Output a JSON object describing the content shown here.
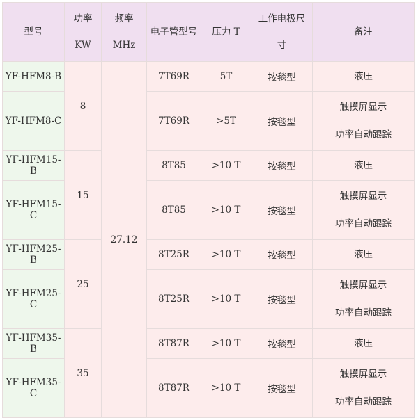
{
  "headers": [
    "型号",
    "功率\nKW",
    "频率\nMHz",
    "电子管型号",
    "压力 T",
    "工作电极尺寸",
    "备注"
  ],
  "header_lines": {
    "power": [
      "功率",
      "KW"
    ],
    "freq": [
      "频率",
      "MHz"
    ],
    "electrode": [
      "工作电极尺",
      "寸"
    ]
  },
  "frequency": "27.12",
  "groups": [
    {
      "power": "8",
      "rows": [
        {
          "model": "YF-HFM8-B",
          "tube": "7T69R",
          "pressure": "5T",
          "electrode": "按毯型",
          "note": [
            "液压"
          ]
        },
        {
          "model": "YF-HFM8-C",
          "tube": "7T69R",
          "pressure": ">5T",
          "electrode": "按毯型",
          "note": [
            "触摸屏显示",
            "功率自动跟踪"
          ]
        }
      ]
    },
    {
      "power": "15",
      "rows": [
        {
          "model": "YF-HFM15-B",
          "tube": "8T85",
          "pressure": ">10 T",
          "electrode": "按毯型",
          "note": [
            "液压"
          ]
        },
        {
          "model": "YF-HFM15-C",
          "tube": "8T85",
          "pressure": ">10 T",
          "electrode": "按毯型",
          "note": [
            "触摸屏显示",
            "功率自动跟踪"
          ]
        }
      ]
    },
    {
      "power": "25",
      "rows": [
        {
          "model": "YF-HFM25-B",
          "tube": "8T25R",
          "pressure": ">10 T",
          "electrode": "按毯型",
          "note": [
            "液压"
          ]
        },
        {
          "model": "YF-HFM25-C",
          "tube": "8T25R",
          "pressure": ">10 T",
          "electrode": "按毯型",
          "note": [
            "触摸屏显示",
            "功率自动跟踪"
          ]
        }
      ]
    },
    {
      "power": "35",
      "rows": [
        {
          "model": "YF-HFM35-B",
          "tube": "8T87R",
          "pressure": ">10 T",
          "electrode": "按毯型",
          "note": [
            "液压"
          ]
        },
        {
          "model": "YF-HFM35-C",
          "tube": "8T87R",
          "pressure": ">10 T",
          "electrode": "按毯型",
          "note": [
            "触摸屏显示",
            "功率自动跟踪"
          ]
        }
      ]
    }
  ],
  "colors": {
    "header_bg": "#f0dff0",
    "model_col_bg": "#eef7ec",
    "cell_bg": "#fdecec"
  }
}
